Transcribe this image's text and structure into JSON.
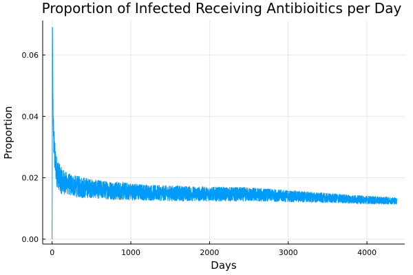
{
  "chart_data": {
    "type": "line",
    "title": "Proportion of Infected Receiving Antibioitics per Day",
    "xlabel": "Days",
    "ylabel": "Proportion",
    "xlim": [
      -120,
      4480
    ],
    "ylim": [
      -0.0016,
      0.0712
    ],
    "xticks": [
      0,
      1000,
      2000,
      3000,
      4000
    ],
    "xtick_labels": [
      "0",
      "1000",
      "2000",
      "3000",
      "4000"
    ],
    "yticks": [
      0,
      0.02,
      0.04,
      0.06
    ],
    "ytick_labels": [
      "0.00",
      "0.02",
      "0.04",
      "0.06"
    ],
    "grid": true,
    "legend": "none",
    "series_color": "#009AF9",
    "n_points": 4380,
    "series": [
      {
        "name": "",
        "x": [
          0,
          5,
          10,
          15,
          20,
          30,
          40,
          60,
          80,
          100,
          150,
          200,
          300,
          400,
          500,
          600,
          800,
          1000,
          1200,
          1400,
          1600,
          1800,
          2000,
          2200,
          2400,
          2600,
          2800,
          3000,
          3200,
          3400,
          3600,
          3800,
          4000,
          4200,
          4380
        ],
        "y": [
          0.0,
          0.069,
          0.045,
          0.038,
          0.033,
          0.028,
          0.025,
          0.022,
          0.021,
          0.0195,
          0.0185,
          0.018,
          0.0172,
          0.0168,
          0.0165,
          0.0162,
          0.0158,
          0.0155,
          0.0152,
          0.015,
          0.0149,
          0.0148,
          0.0147,
          0.0147,
          0.0146,
          0.0145,
          0.0143,
          0.014,
          0.0138,
          0.0135,
          0.0133,
          0.013,
          0.0128,
          0.0126,
          0.0125
        ],
        "noise_amplitude": [
          0.0,
          0.0,
          0.006,
          0.006,
          0.006,
          0.006,
          0.005,
          0.005,
          0.0045,
          0.0045,
          0.004,
          0.0035,
          0.0035,
          0.0035,
          0.003,
          0.003,
          0.003,
          0.0028,
          0.0026,
          0.0025,
          0.0025,
          0.0024,
          0.0023,
          0.0023,
          0.0023,
          0.0022,
          0.002,
          0.0019,
          0.0018,
          0.0016,
          0.0015,
          0.0014,
          0.0013,
          0.0012,
          0.0011
        ]
      }
    ]
  }
}
